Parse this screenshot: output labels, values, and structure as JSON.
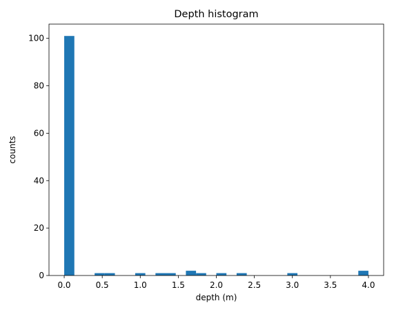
{
  "chart_data": {
    "type": "bar",
    "title": "Depth histogram",
    "xlabel": "depth (m)",
    "ylabel": "counts",
    "xlim": [
      -0.2,
      4.2
    ],
    "ylim": [
      0,
      106
    ],
    "x_ticks": [
      0.0,
      0.5,
      1.0,
      1.5,
      2.0,
      2.5,
      3.0,
      3.5,
      4.0
    ],
    "x_tick_labels": [
      "0.0",
      "0.5",
      "1.0",
      "1.5",
      "2.0",
      "2.5",
      "3.0",
      "3.5",
      "4.0"
    ],
    "y_ticks": [
      0,
      20,
      40,
      60,
      80,
      100
    ],
    "y_tick_labels": [
      "0",
      "20",
      "40",
      "60",
      "80",
      "100"
    ],
    "grid": false,
    "bar_color": "#1f77b4",
    "bin_width": 0.1333,
    "bins": [
      {
        "start": 0.0,
        "end": 0.1333,
        "count": 101
      },
      {
        "start": 0.4,
        "end": 0.5333,
        "count": 1
      },
      {
        "start": 0.5333,
        "end": 0.6667,
        "count": 1
      },
      {
        "start": 0.9333,
        "end": 1.0667,
        "count": 1
      },
      {
        "start": 1.2,
        "end": 1.3333,
        "count": 1
      },
      {
        "start": 1.3333,
        "end": 1.4667,
        "count": 1
      },
      {
        "start": 1.6,
        "end": 1.7333,
        "count": 2
      },
      {
        "start": 1.7333,
        "end": 1.8667,
        "count": 1
      },
      {
        "start": 2.0,
        "end": 2.1333,
        "count": 1
      },
      {
        "start": 2.2667,
        "end": 2.4,
        "count": 1
      },
      {
        "start": 2.9333,
        "end": 3.0667,
        "count": 1
      },
      {
        "start": 3.8667,
        "end": 4.0,
        "count": 2
      }
    ]
  }
}
